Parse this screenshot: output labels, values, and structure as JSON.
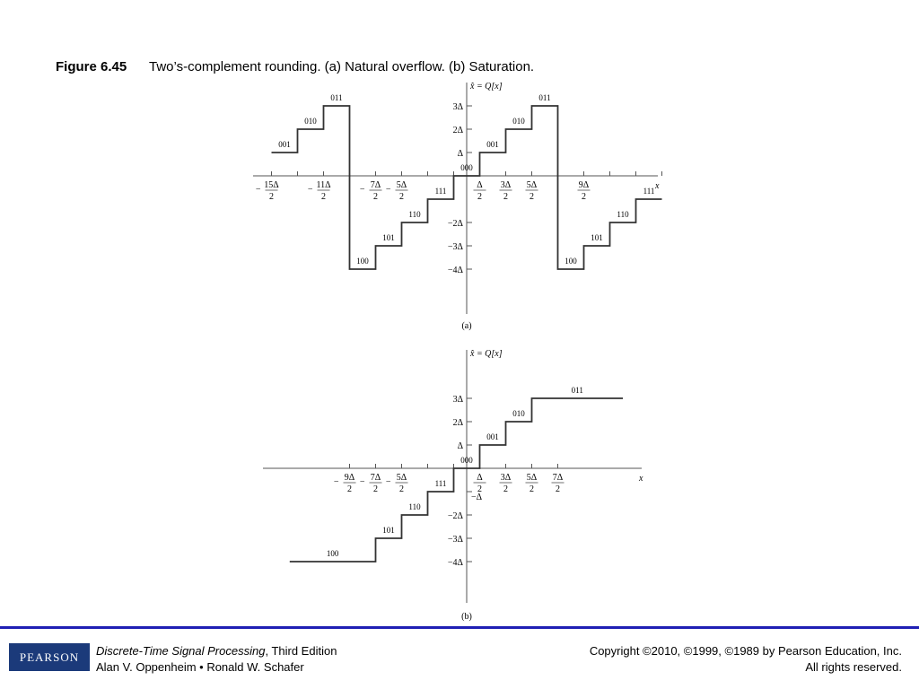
{
  "figure": {
    "number": "Figure 6.45",
    "caption": "Two’s-complement rounding. (a) Natural overflow. (b) Saturation."
  },
  "panels": [
    {
      "label": "(a)",
      "y_axis_label": "x̂ = Q[x]",
      "x_axis_label": "x",
      "y_ticks": [
        "3Δ",
        "2Δ",
        "Δ",
        "−2Δ",
        "−3Δ",
        "−4Δ"
      ],
      "x_ticks": [
        {
          "sign": "−",
          "numerator": "15Δ",
          "denominator": "2"
        },
        {
          "sign": "−",
          "numerator": "11Δ",
          "denominator": "2"
        },
        {
          "sign": "−",
          "numerator": "7Δ",
          "denominator": "2"
        },
        {
          "sign": "−",
          "numerator": "5Δ",
          "denominator": "2"
        },
        {
          "numerator": "Δ",
          "denominator": "2"
        },
        {
          "numerator": "3Δ",
          "denominator": "2"
        },
        {
          "numerator": "5Δ",
          "denominator": "2"
        },
        {
          "numerator": "9Δ",
          "denominator": "2"
        }
      ],
      "codes": [
        "001",
        "010",
        "011",
        "100",
        "101",
        "110",
        "111",
        "000",
        "001",
        "010",
        "011",
        "100",
        "101",
        "110",
        "111"
      ]
    },
    {
      "label": "(b)",
      "y_axis_label": "x̂ = Q[x]",
      "x_axis_label": "x",
      "y_ticks": [
        "3Δ",
        "2Δ",
        "Δ",
        "−Δ",
        "−2Δ",
        "−3Δ",
        "−4Δ"
      ],
      "x_ticks": [
        {
          "sign": "−",
          "numerator": "9Δ",
          "denominator": "2"
        },
        {
          "sign": "−",
          "numerator": "7Δ",
          "denominator": "2"
        },
        {
          "sign": "−",
          "numerator": "5Δ",
          "denominator": "2"
        },
        {
          "numerator": "Δ",
          "denominator": "2"
        },
        {
          "numerator": "3Δ",
          "denominator": "2"
        },
        {
          "numerator": "5Δ",
          "denominator": "2"
        },
        {
          "numerator": "7Δ",
          "denominator": "2"
        }
      ],
      "codes": [
        "100",
        "101",
        "110",
        "111",
        "000",
        "001",
        "010",
        "011"
      ]
    }
  ],
  "footer": {
    "logo": "PEARSON",
    "book_title": "Discrete-Time Signal Processing",
    "edition": ", Third Edition",
    "authors": "Alan V. Oppenheim • Ronald W. Schafer",
    "copyright": "Copyright ©2010, ©1999, ©1989 by Pearson Education, Inc.",
    "rights": "All rights reserved."
  }
}
